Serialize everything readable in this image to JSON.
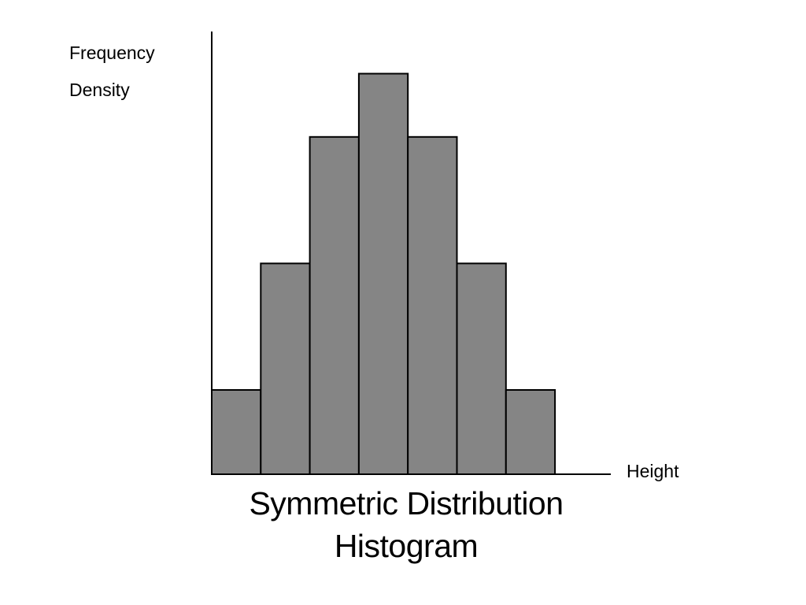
{
  "chart_data": {
    "type": "bar",
    "subtype": "histogram",
    "title_lines": [
      "Symmetric Distribution",
      "Histogram"
    ],
    "ylabel_lines": [
      "Frequency",
      "Density"
    ],
    "xlabel": "Height",
    "categories": [
      "",
      "",
      "",
      "",
      "",
      "",
      ""
    ],
    "values": [
      2,
      5,
      8,
      9.5,
      8,
      5,
      2
    ],
    "ylim": [
      0,
      10.5
    ],
    "grid": false,
    "legend": "none",
    "bar_color": "#858585",
    "edge_color": "#000000"
  }
}
